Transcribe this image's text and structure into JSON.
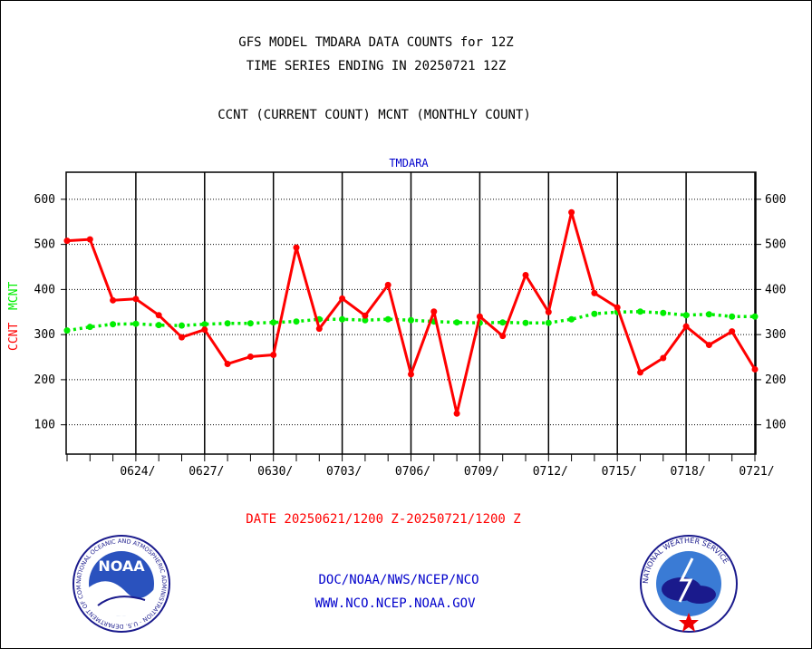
{
  "title_line1": "GFS MODEL TMDARA DATA COUNTS for 12Z",
  "title_line2": "TIME SERIES ENDING IN 20250721 12Z",
  "title_line3": "CCNT (CURRENT COUNT) MCNT (MONTHLY COUNT)",
  "footer": {
    "date_range": "DATE 20250621/1200 Z-20250721/1200 Z",
    "org_path": "DOC/NOAA/NWS/NCEP/NCO",
    "website": "WWW.NCO.NCEP.NOAA.GOV"
  },
  "logos": {
    "noaa_text": "NOAA",
    "noaa_ring": "NATIONAL OCEANIC AND ATMOSPHERIC ADMINISTRATION · U.S. DEPARTMENT OF COMMERCE",
    "nws_ring": "NATIONAL WEATHER SERVICE"
  },
  "colors": {
    "ccnt": "#ff0000",
    "mcnt": "#00ee00",
    "panel_title": "#0000cc",
    "link": "#0000cc"
  },
  "chart_data": {
    "type": "line",
    "panel_title": "TMDARA",
    "ylabel_ccnt": "CCNT",
    "ylabel_mcnt": "MCNT",
    "x_ticks": [
      "0624/",
      "0627/",
      "0630/",
      "0703/",
      "0706/",
      "0709/",
      "0712/",
      "0715/",
      "0718/",
      "0721/"
    ],
    "y_ticks": [
      100,
      200,
      300,
      400,
      500,
      600
    ],
    "ylim": [
      35,
      660
    ],
    "x_range_days": [
      0,
      30
    ],
    "gridlines": "horizontal dotted",
    "series": [
      {
        "name": "CCNT",
        "x": [
          0,
          1,
          2,
          3,
          4,
          5,
          6,
          7,
          8,
          9,
          10,
          11,
          12,
          13,
          14,
          15,
          16,
          17,
          18,
          19,
          20,
          21,
          22,
          23,
          24,
          25,
          26,
          27,
          28,
          29,
          30
        ],
        "values": [
          508,
          511,
          376,
          379,
          343,
          294,
          311,
          235,
          251,
          255,
          493,
          313,
          380,
          342,
          410,
          212,
          351,
          125,
          340,
          297,
          432,
          350,
          571,
          392,
          360,
          216,
          248,
          318,
          277,
          307,
          223
        ]
      },
      {
        "name": "MCNT",
        "x": [
          0,
          1,
          2,
          3,
          4,
          5,
          6,
          7,
          8,
          9,
          10,
          11,
          12,
          13,
          14,
          15,
          16,
          17,
          18,
          19,
          20,
          21,
          22,
          23,
          24,
          25,
          26,
          27,
          28,
          29,
          30
        ],
        "values": [
          309,
          317,
          323,
          324,
          321,
          320,
          323,
          325,
          325,
          327,
          329,
          334,
          334,
          332,
          334,
          332,
          329,
          327,
          326,
          327,
          326,
          326,
          334,
          346,
          350,
          351,
          348,
          343,
          345,
          340,
          340
        ]
      }
    ]
  }
}
